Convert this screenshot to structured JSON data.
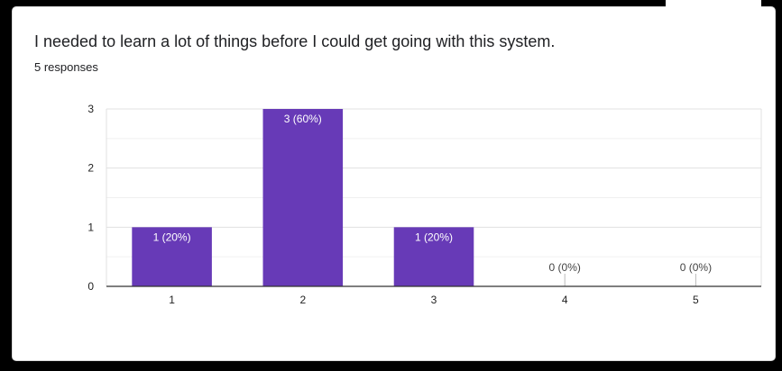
{
  "question": {
    "title": "I needed to learn a lot of things before I could get going with this system.",
    "responses": "5 responses"
  },
  "colors": {
    "bar": "#673ab7",
    "grid": "#e6e6e6",
    "axis": "#333333"
  },
  "chart_data": {
    "type": "bar",
    "categories": [
      "1",
      "2",
      "3",
      "4",
      "5"
    ],
    "values": [
      1,
      3,
      1,
      0,
      0
    ],
    "data_labels": [
      "1 (20%)",
      "3 (60%)",
      "1 (20%)",
      "0 (0%)",
      "0 (0%)"
    ],
    "yticks": [
      "0",
      "1",
      "2",
      "3"
    ],
    "ylim": [
      0,
      3
    ],
    "grid": true,
    "title": "",
    "xlabel": "",
    "ylabel": ""
  }
}
